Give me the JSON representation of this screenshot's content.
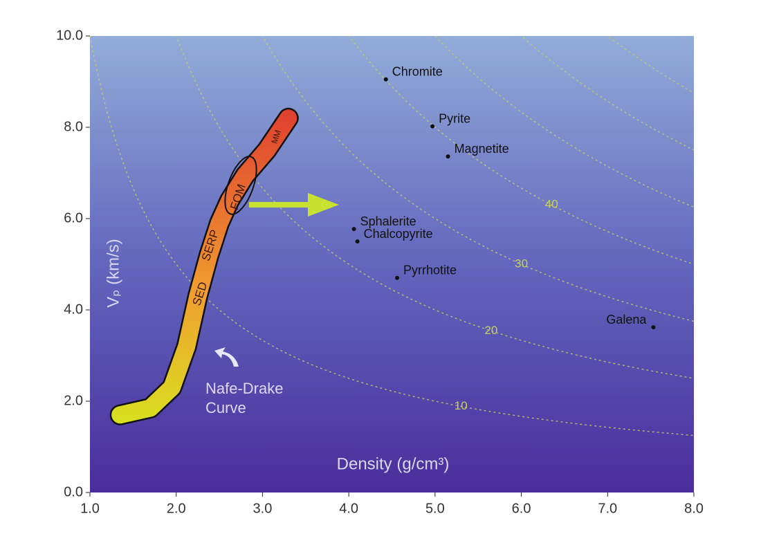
{
  "chart_data": {
    "type": "scatter",
    "xlabel": "Density (g/cm³)",
    "ylabel": "Vₚ (km/s)",
    "xlim": [
      1,
      8
    ],
    "ylim": [
      0,
      10
    ],
    "xticks": [
      {
        "value": 1,
        "label": "1.0"
      },
      {
        "value": 2,
        "label": "2.0"
      },
      {
        "value": 3,
        "label": "3.0"
      },
      {
        "value": 4,
        "label": "4.0"
      },
      {
        "value": 5,
        "label": "5.0"
      },
      {
        "value": 6,
        "label": "6.0"
      },
      {
        "value": 7,
        "label": "7.0"
      },
      {
        "value": 8,
        "label": "8.0"
      }
    ],
    "yticks": [
      {
        "value": 0,
        "label": "0.0"
      },
      {
        "value": 2,
        "label": "2.0"
      },
      {
        "value": 4,
        "label": "4.0"
      },
      {
        "value": 6,
        "label": "6.0"
      },
      {
        "value": 8,
        "label": "8.0"
      },
      {
        "value": 10,
        "label": "10.0"
      }
    ],
    "points": {
      "names": [
        "Chromite",
        "Pyrite",
        "Magnetite",
        "Sphalerite",
        "Chalcopyrite",
        "Pyrrhotite",
        "Galena"
      ],
      "x": [
        4.43,
        4.97,
        5.15,
        4.06,
        4.1,
        4.56,
        7.53
      ],
      "y": [
        9.05,
        8.02,
        7.36,
        5.77,
        5.5,
        4.7,
        3.62
      ],
      "color": "#111111"
    },
    "contours": [
      10,
      20,
      30,
      40,
      50,
      60,
      70,
      80
    ],
    "contour_labels": [
      10,
      20,
      30,
      40
    ],
    "contour_color": "#c8d060",
    "curve": {
      "x": [
        1.35,
        1.7,
        1.95,
        2.12,
        2.25,
        2.38,
        2.5,
        2.62,
        2.8,
        3.05,
        3.3
      ],
      "y": [
        1.7,
        1.85,
        2.3,
        3.2,
        4.3,
        5.2,
        5.9,
        6.4,
        6.95,
        7.5,
        8.2
      ]
    },
    "region_labels": [
      "SED",
      "SERP",
      "FOM",
      "MM"
    ],
    "curve_label": [
      "Nafe-Drake",
      "Curve"
    ]
  }
}
